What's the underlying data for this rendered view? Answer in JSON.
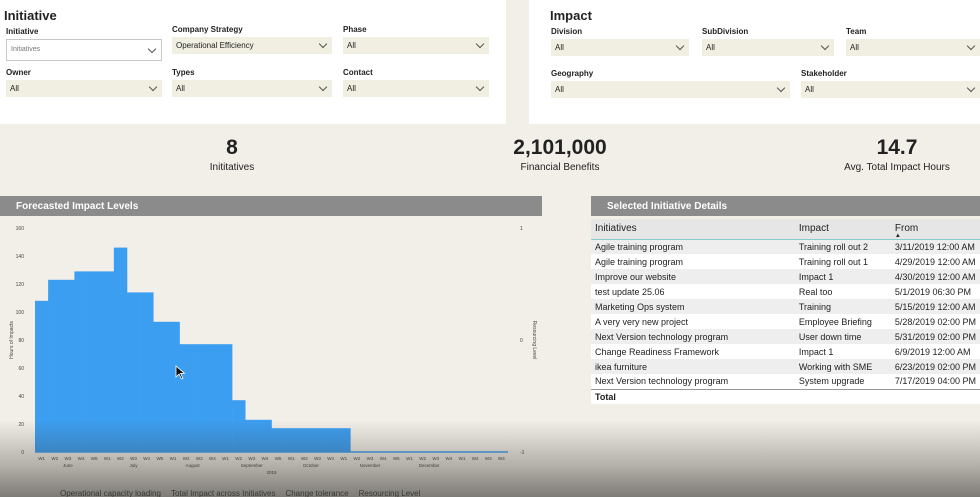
{
  "initiative_panel": {
    "title": "Initiative",
    "slicers": [
      {
        "label": "Initiative",
        "value": "Initiatives"
      },
      {
        "label": "Company Strategy",
        "value": "Operational Efficiency"
      },
      {
        "label": "Phase",
        "value": "All"
      },
      {
        "label": "Owner",
        "value": "All"
      },
      {
        "label": "Types",
        "value": "All"
      },
      {
        "label": "Contact",
        "value": "All"
      }
    ]
  },
  "impact_panel": {
    "title": "Impact",
    "slicers": [
      {
        "label": "Division",
        "value": "All"
      },
      {
        "label": "SubDivision",
        "value": "All"
      },
      {
        "label": "Team",
        "value": "All"
      },
      {
        "label": "Geography",
        "value": "All"
      },
      {
        "label": "Stakeholder",
        "value": "All"
      }
    ]
  },
  "kpis": [
    {
      "value": "8",
      "label": "Inititatives"
    },
    {
      "value": "2,101,000",
      "label": "Financial Benefits"
    },
    {
      "value": "14.7",
      "label": "Avg. Total Impact Hours"
    }
  ],
  "chart_header": "Forecasted Impact Levels",
  "table_header": "Selected Initiative Details",
  "chart_data": {
    "type": "area",
    "title": "Forecasted Impact Levels",
    "ylabel": "Hours of Impacts",
    "y2label": "Resourcing Level",
    "ylim": [
      0,
      160
    ],
    "y2lim": [
      -1,
      1
    ],
    "yticks": [
      0,
      20,
      40,
      60,
      80,
      100,
      120,
      140,
      160
    ],
    "y2ticks": [
      -1,
      0,
      1
    ],
    "week_labels": [
      "W1",
      "W2",
      "W3",
      "W4",
      "W5",
      "W1",
      "W2",
      "W3",
      "W4",
      "W5",
      "W1",
      "W2",
      "W3",
      "W4",
      "W1",
      "W2",
      "W3",
      "W4",
      "W5",
      "W1",
      "W2",
      "W3",
      "W4",
      "W1",
      "W2",
      "W3",
      "W4",
      "W5",
      "W1",
      "W2",
      "W3",
      "W4",
      "W1",
      "W2",
      "W3",
      "W4"
    ],
    "months": [
      {
        "name": "June",
        "start": 0,
        "span": 5
      },
      {
        "name": "July",
        "start": 5,
        "span": 5
      },
      {
        "name": "August",
        "start": 10,
        "span": 4
      },
      {
        "name": "September",
        "start": 14,
        "span": 5
      },
      {
        "name": "October",
        "start": 19,
        "span": 4
      },
      {
        "name": "November",
        "start": 23,
        "span": 5
      },
      {
        "name": "December",
        "start": 28,
        "span": 4
      }
    ],
    "year_label": "2019",
    "series": [
      {
        "name": "Total Impact across Initiatives",
        "color": "#3c9ef0",
        "values": [
          108,
          123,
          123,
          129,
          129,
          129,
          146,
          114,
          114,
          93,
          93,
          77,
          77,
          77,
          77,
          37,
          23,
          23,
          17,
          17,
          17,
          17,
          17,
          17,
          0,
          0,
          0,
          0,
          0,
          0,
          0,
          0,
          0,
          0,
          0,
          0
        ]
      }
    ],
    "legend": [
      "Operational capacity loading",
      "Total Impact across Initiatives",
      "Change tolerance",
      "Resourcing Level"
    ]
  },
  "table": {
    "columns": [
      "Initiatives",
      "Impact",
      "From"
    ],
    "rows": [
      [
        "Agile training program",
        "Training roll out 2",
        "3/11/2019 12:00 AM"
      ],
      [
        "Agile training program",
        "Training roll out 1",
        "4/29/2019 12:00 AM"
      ],
      [
        "Improve our website",
        "Impact 1",
        "4/30/2019 12:00 AM"
      ],
      [
        "test update 25.06",
        "Real too",
        "5/1/2019 06:30 PM"
      ],
      [
        "Marketing Ops system",
        "Training",
        "5/15/2019 12:00 AM"
      ],
      [
        "A very very new project",
        "Employee Briefing",
        "5/28/2019 02:00 PM"
      ],
      [
        "Next Version technology program",
        "User down time",
        "5/31/2019 02:00 PM"
      ],
      [
        "Change Readiness Framework",
        "Impact 1",
        "6/9/2019 12:00 AM"
      ],
      [
        "ikea furniture",
        "Working with SME",
        "6/23/2019 02:00 PM"
      ],
      [
        "Next Version technology program",
        "System upgrade",
        "7/17/2019 04:00 PM"
      ]
    ],
    "total_label": "Total"
  }
}
